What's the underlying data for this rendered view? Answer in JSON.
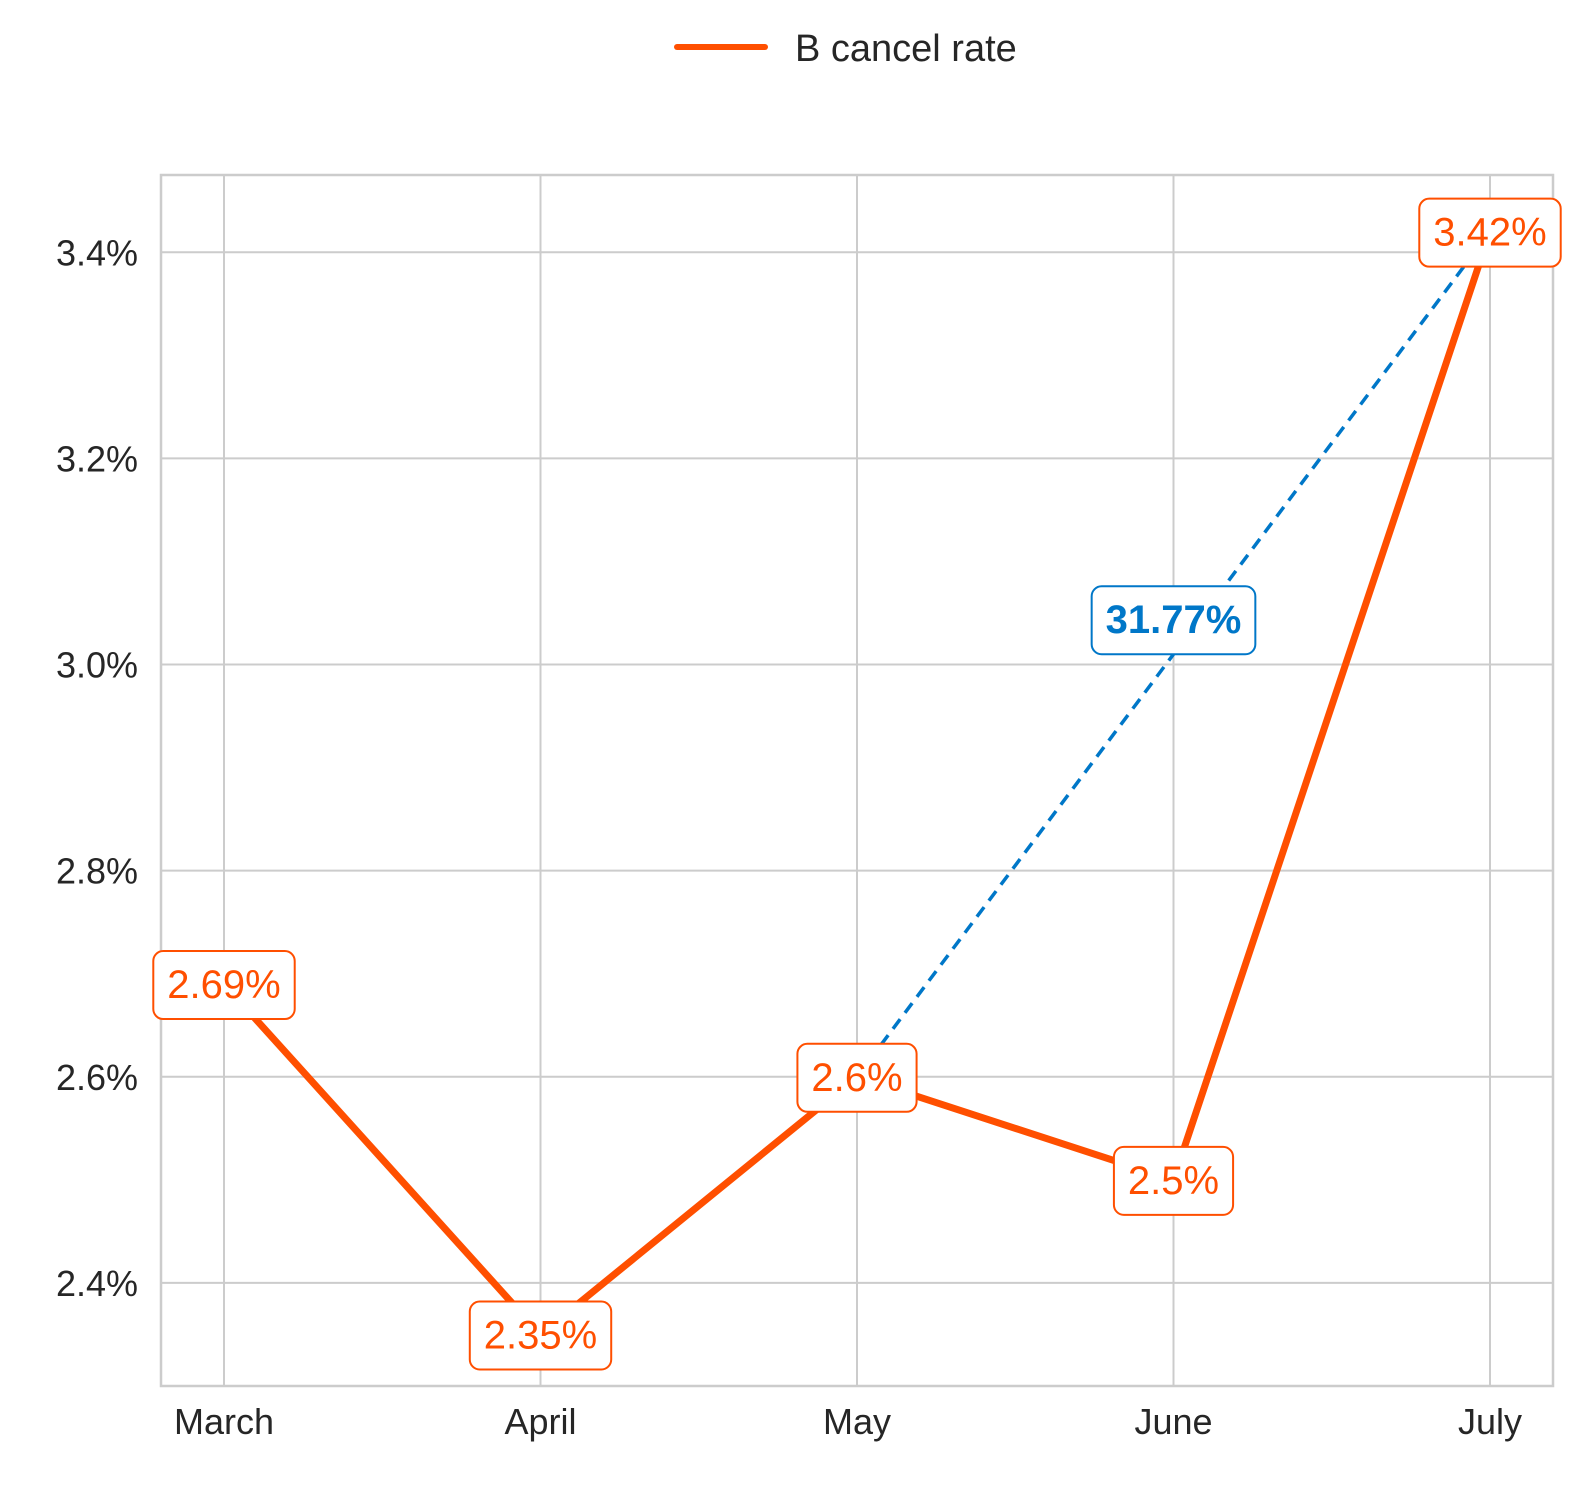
{
  "chart_data": {
    "type": "line",
    "categories": [
      "March",
      "April",
      "May",
      "June",
      "July"
    ],
    "series": [
      {
        "name": "B cancel rate",
        "values": [
          2.69,
          2.35,
          2.6,
          2.5,
          3.42
        ],
        "labels": [
          "2.69%",
          "2.35%",
          "2.6%",
          "2.5%",
          "3.42%"
        ],
        "color": "#ff4f00"
      }
    ],
    "change_annotation": {
      "from_category": "May",
      "to_category": "July",
      "from_value": 2.6,
      "to_value": 3.42,
      "label": "31.77%",
      "color": "#0077c8",
      "line_style": "dashed"
    },
    "y_ticks": [
      2.4,
      2.6,
      2.8,
      3.0,
      3.2,
      3.4
    ],
    "y_tick_labels": [
      "2.4%",
      "2.6%",
      "2.8%",
      "3.0%",
      "3.2%",
      "3.4%"
    ],
    "ylim": [
      2.3,
      3.475
    ],
    "grid": true,
    "legend_position": "top-center",
    "title": "",
    "xlabel": "",
    "ylabel": ""
  }
}
